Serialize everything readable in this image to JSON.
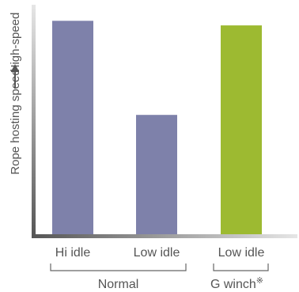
{
  "chart_data": {
    "type": "bar",
    "categories": [
      "Hi idle",
      "Low idle",
      "Low idle"
    ],
    "values": [
      93,
      52,
      91
    ],
    "ylim": [
      0,
      100
    ],
    "ylabel": "Rope hosting speed",
    "ylabel_high": "High-speed",
    "groups": [
      {
        "label": "Normal",
        "members": [
          0,
          1
        ]
      },
      {
        "label": "G winch",
        "note_mark": "※",
        "members": [
          2
        ]
      }
    ],
    "bar_colors": [
      "#7e81aa",
      "#7e81aa",
      "#9dba31"
    ],
    "grid": false,
    "axis_color": "#8a8a8a",
    "text_color": "#555555"
  }
}
